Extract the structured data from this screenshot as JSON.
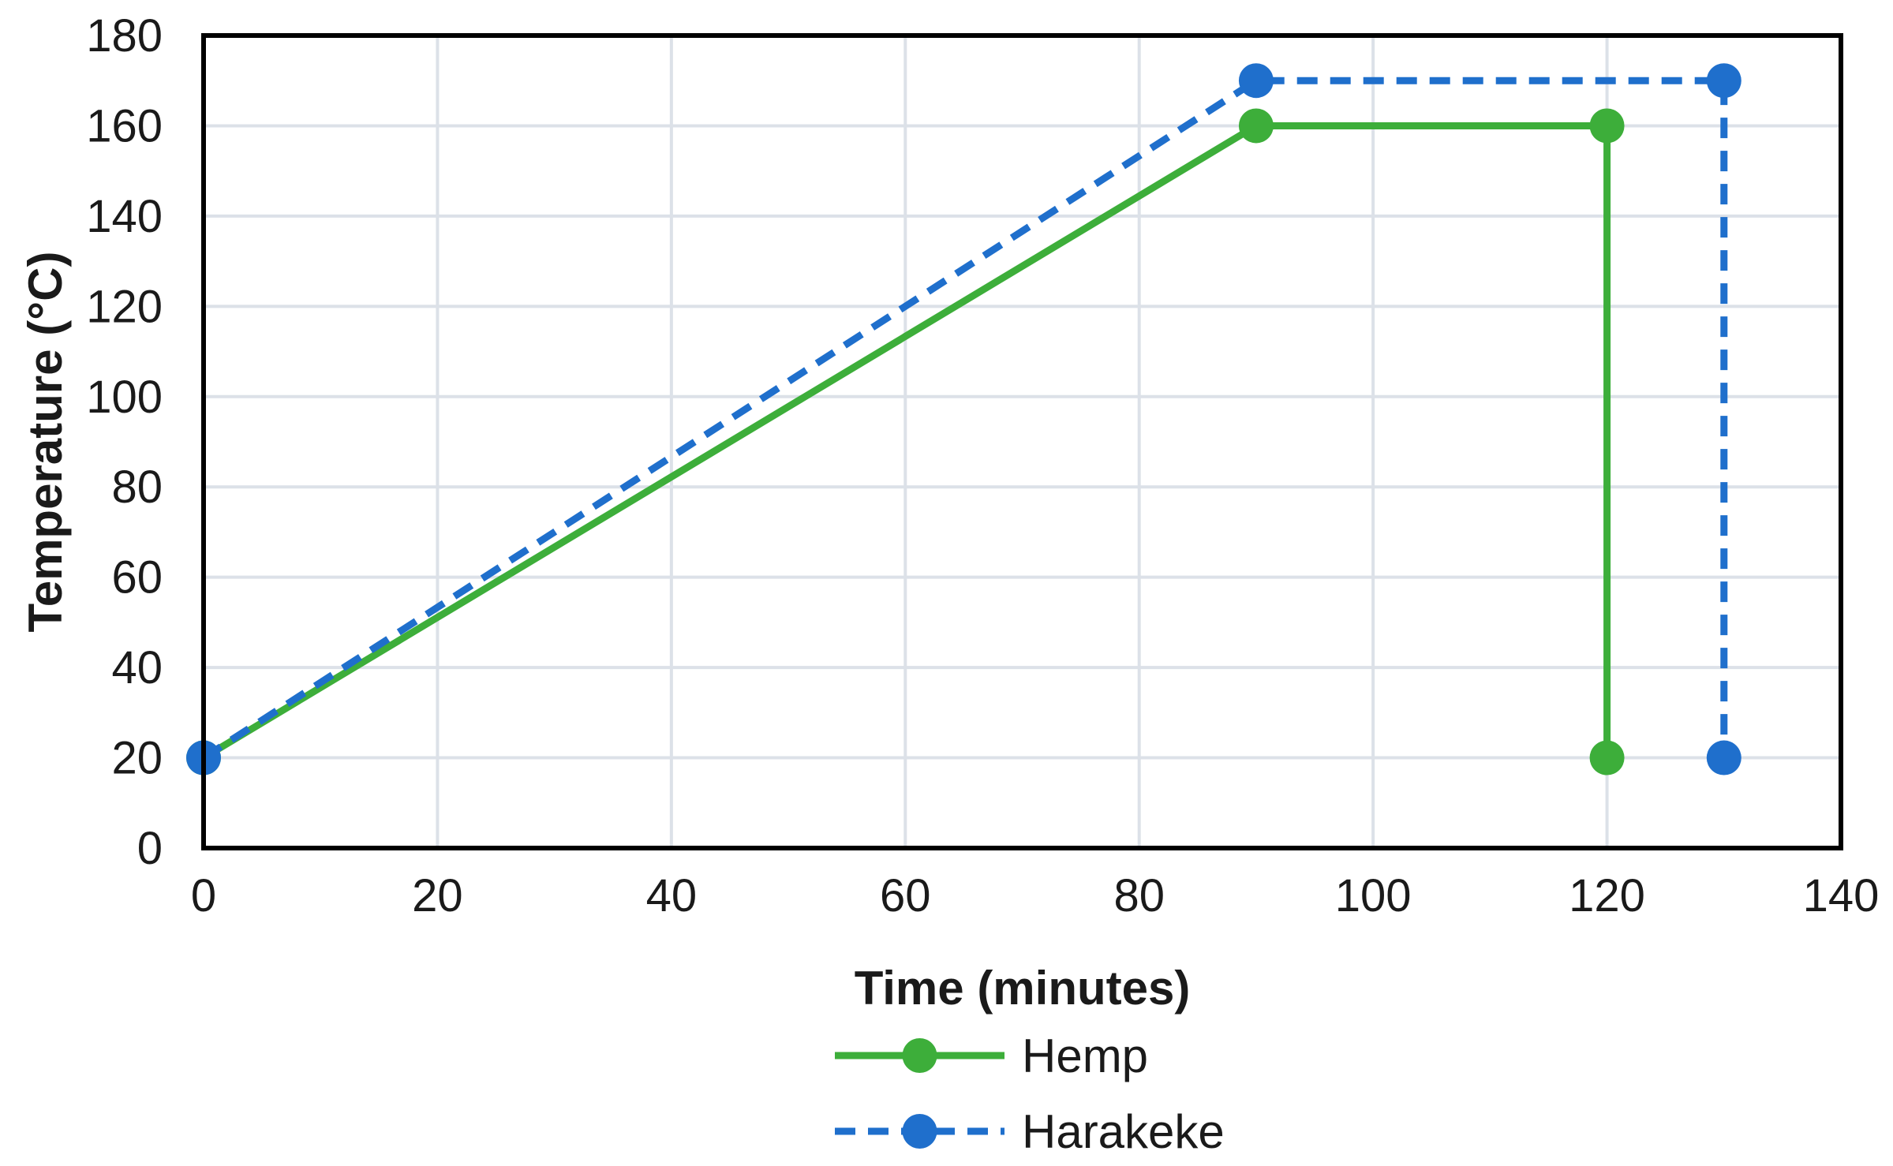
{
  "chart_data": {
    "type": "line",
    "title": "",
    "xlabel": "Time (minutes)",
    "ylabel": "Temperature (°C)",
    "xlim": [
      0,
      140
    ],
    "ylim": [
      0,
      180
    ],
    "xticks": [
      0,
      20,
      40,
      60,
      80,
      100,
      120,
      140
    ],
    "yticks": [
      0,
      20,
      40,
      60,
      80,
      100,
      120,
      140,
      160,
      180
    ],
    "grid": true,
    "legend_position": "bottom",
    "series": [
      {
        "name": "Hemp",
        "color": "#3DAE3A",
        "line_style": "solid",
        "marker": "circle",
        "x": [
          0,
          90,
          120,
          120
        ],
        "y": [
          20,
          160,
          160,
          20
        ]
      },
      {
        "name": "Harakeke",
        "color": "#1F6FCC",
        "line_style": "dashed",
        "marker": "circle",
        "x": [
          0,
          90,
          130,
          130
        ],
        "y": [
          20,
          170,
          170,
          20
        ]
      }
    ]
  }
}
